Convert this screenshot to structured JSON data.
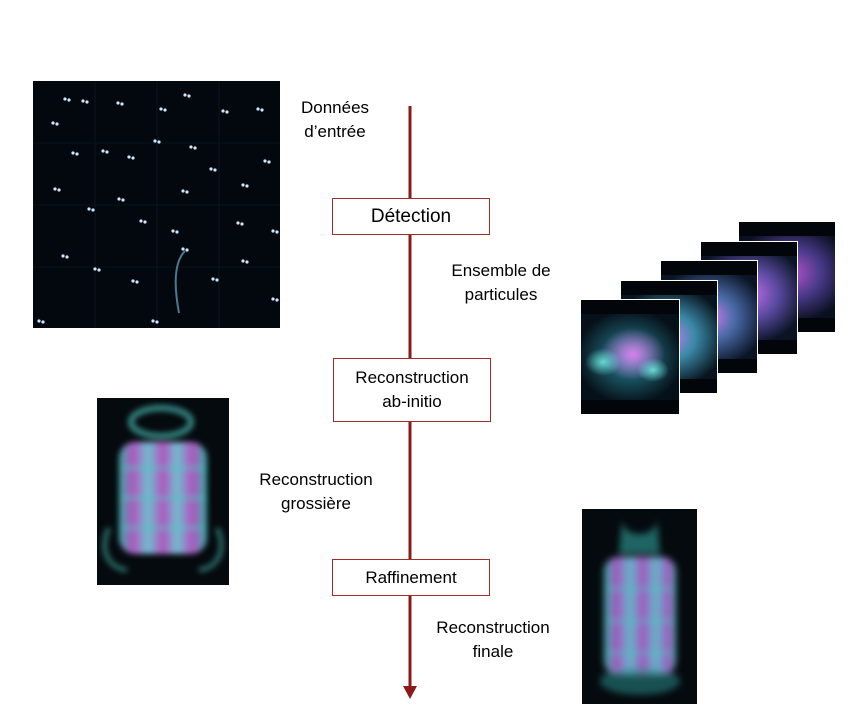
{
  "labels": {
    "input_data": [
      "Données",
      "d’entrée"
    ],
    "particle_set": [
      "Ensemble de",
      "particules"
    ],
    "coarse_reconstruction": [
      "Reconstruction",
      "grossière"
    ],
    "final_reconstruction": [
      "Reconstruction",
      "finale"
    ]
  },
  "steps": {
    "detection": "Détection",
    "ab_initio": [
      "Reconstruction",
      "ab-initio"
    ],
    "refinement": "Raffinement"
  },
  "colors": {
    "arrow": "#8b1a1a",
    "box_border": "#a52a2a",
    "image_background": "#02060a",
    "cyan": "#3fc9c0",
    "magenta": "#d060e0"
  },
  "icons": {
    "input_image": "micrograph-image",
    "particles_image": "particle-stack-image",
    "coarse_image": "coarse-volume-image",
    "final_image": "final-volume-image"
  }
}
